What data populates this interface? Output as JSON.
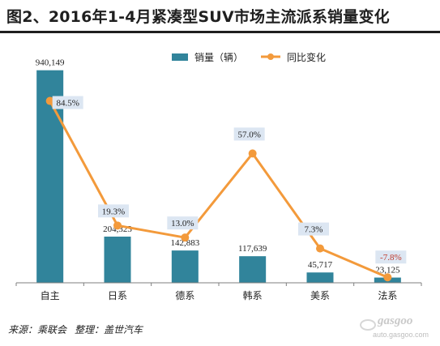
{
  "title": "图2、2016年1-4月紧凑型SUV市场主流派系销量变化",
  "source": {
    "left": "来源：乘联会",
    "right": "整理：盖世汽车"
  },
  "watermark": {
    "logo": "gasgoo",
    "url": "auto.gasgoo.com"
  },
  "colors": {
    "bar": "#31849b",
    "line": "#f39a3b",
    "axis": "#7f7f7f",
    "label_bg": "#dce6f2"
  },
  "chart_data": {
    "type": "bar",
    "categories": [
      "自主",
      "日系",
      "德系",
      "韩系",
      "美系",
      "法系"
    ],
    "series": [
      {
        "name": "销量（辆）",
        "type": "bar",
        "values": [
          940149,
          204323,
          142883,
          117639,
          45717,
          23125
        ],
        "labels": [
          "940,149",
          "204,323",
          "142,883",
          "117,639",
          "45,717",
          "23,125"
        ]
      },
      {
        "name": "同比变化",
        "type": "line",
        "axis": "secondary",
        "values": [
          84.5,
          19.3,
          13.0,
          57.0,
          7.3,
          -7.8
        ],
        "labels": [
          "84.5%",
          "19.3%",
          "13.0%",
          "57.0%",
          "7.3%",
          "-7.8%"
        ]
      }
    ],
    "ylim": [
      0,
      1000000
    ],
    "y2lim": [
      -20,
      100
    ],
    "legend": "top-center",
    "grid": false,
    "xlabel": "",
    "ylabel": ""
  }
}
